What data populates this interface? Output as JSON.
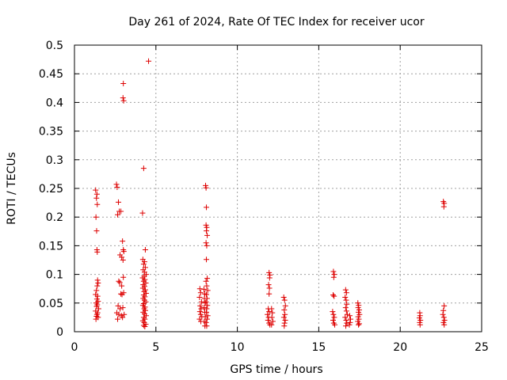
{
  "chart_data": {
    "type": "scatter",
    "title": "Day 261 of 2024, Rate Of TEC Index for receiver ucor",
    "xlabel": "GPS time / hours",
    "ylabel": "ROTI / TECUs",
    "xlim": [
      0,
      25
    ],
    "ylim": [
      0,
      0.5
    ],
    "xticks": [
      0,
      5,
      10,
      15,
      20,
      25
    ],
    "yticks": [
      0,
      0.05,
      0.1,
      0.15,
      0.2,
      0.25,
      0.3,
      0.35,
      0.4,
      0.45,
      0.5
    ],
    "xtick_labels": [
      "0",
      "5",
      "10",
      "15",
      "20",
      "25"
    ],
    "ytick_labels": [
      "0",
      "0.05",
      "0.1",
      "0.15",
      "0.2",
      "0.25",
      "0.3",
      "0.35",
      "0.4",
      "0.45",
      "0.5"
    ],
    "grid": true,
    "marker": "plus",
    "colors": {
      "series": "#dd0000",
      "grid": "#a0a0a0",
      "axis": "#000000"
    },
    "series": [
      {
        "points": [
          [
            1.3,
            0.247
          ],
          [
            1.38,
            0.24
          ],
          [
            1.35,
            0.233
          ],
          [
            1.4,
            0.222
          ],
          [
            1.32,
            0.2
          ],
          [
            1.36,
            0.176
          ],
          [
            1.38,
            0.143
          ],
          [
            1.4,
            0.139
          ],
          [
            1.42,
            0.09
          ],
          [
            1.45,
            0.085
          ],
          [
            1.4,
            0.08
          ],
          [
            1.35,
            0.072
          ],
          [
            1.3,
            0.065
          ],
          [
            1.42,
            0.062
          ],
          [
            1.38,
            0.057
          ],
          [
            1.45,
            0.053
          ],
          [
            1.33,
            0.05
          ],
          [
            1.4,
            0.047
          ],
          [
            1.36,
            0.044
          ],
          [
            1.48,
            0.04
          ],
          [
            1.3,
            0.036
          ],
          [
            1.42,
            0.033
          ],
          [
            1.38,
            0.03
          ],
          [
            1.35,
            0.027
          ],
          [
            1.45,
            0.025
          ],
          [
            1.32,
            0.022
          ],
          [
            2.58,
            0.257
          ],
          [
            2.62,
            0.252
          ],
          [
            2.7,
            0.226
          ],
          [
            2.75,
            0.21
          ],
          [
            2.65,
            0.204
          ],
          [
            2.85,
            0.21
          ],
          [
            2.8,
            0.134
          ],
          [
            2.9,
            0.13
          ],
          [
            2.72,
            0.088
          ],
          [
            2.78,
            0.086
          ],
          [
            2.9,
            0.08
          ],
          [
            2.85,
            0.066
          ],
          [
            2.92,
            0.065
          ],
          [
            2.68,
            0.045
          ],
          [
            2.8,
            0.04
          ],
          [
            2.6,
            0.033
          ],
          [
            2.72,
            0.03
          ],
          [
            2.88,
            0.028
          ],
          [
            2.95,
            0.025
          ],
          [
            2.65,
            0.022
          ],
          [
            3.0,
            0.433
          ],
          [
            2.98,
            0.408
          ],
          [
            3.02,
            0.403
          ],
          [
            2.95,
            0.158
          ],
          [
            3.0,
            0.143
          ],
          [
            3.03,
            0.14
          ],
          [
            2.98,
            0.125
          ],
          [
            3.0,
            0.095
          ],
          [
            3.02,
            0.068
          ],
          [
            2.97,
            0.042
          ],
          [
            3.05,
            0.03
          ],
          [
            4.55,
            0.472
          ],
          [
            4.25,
            0.285
          ],
          [
            4.18,
            0.207
          ],
          [
            4.35,
            0.143
          ],
          [
            4.2,
            0.126
          ],
          [
            4.3,
            0.122
          ],
          [
            4.25,
            0.118
          ],
          [
            4.35,
            0.112
          ],
          [
            4.22,
            0.108
          ],
          [
            4.3,
            0.104
          ],
          [
            4.4,
            0.1
          ],
          [
            4.28,
            0.097
          ],
          [
            4.18,
            0.094
          ],
          [
            4.32,
            0.091
          ],
          [
            4.25,
            0.088
          ],
          [
            4.38,
            0.085
          ],
          [
            4.22,
            0.082
          ],
          [
            4.3,
            0.079
          ],
          [
            4.2,
            0.076
          ],
          [
            4.35,
            0.073
          ],
          [
            4.28,
            0.07
          ],
          [
            4.4,
            0.067
          ],
          [
            4.25,
            0.064
          ],
          [
            4.32,
            0.061
          ],
          [
            4.22,
            0.058
          ],
          [
            4.3,
            0.055
          ],
          [
            4.38,
            0.052
          ],
          [
            4.25,
            0.049
          ],
          [
            4.2,
            0.046
          ],
          [
            4.33,
            0.043
          ],
          [
            4.28,
            0.04
          ],
          [
            4.35,
            0.037
          ],
          [
            4.22,
            0.034
          ],
          [
            4.3,
            0.031
          ],
          [
            4.4,
            0.028
          ],
          [
            4.25,
            0.025
          ],
          [
            4.32,
            0.022
          ],
          [
            4.2,
            0.019
          ],
          [
            4.28,
            0.016
          ],
          [
            4.38,
            0.013
          ],
          [
            4.25,
            0.011
          ],
          [
            4.32,
            0.009
          ],
          [
            7.7,
            0.075
          ],
          [
            7.75,
            0.068
          ],
          [
            7.68,
            0.06
          ],
          [
            7.8,
            0.052
          ],
          [
            7.72,
            0.045
          ],
          [
            7.78,
            0.04
          ],
          [
            7.7,
            0.035
          ],
          [
            7.75,
            0.03
          ],
          [
            7.82,
            0.026
          ],
          [
            7.68,
            0.022
          ],
          [
            7.76,
            0.018
          ],
          [
            7.95,
            0.074
          ],
          [
            8.0,
            0.066
          ],
          [
            7.98,
            0.058
          ],
          [
            8.02,
            0.05
          ],
          [
            7.96,
            0.042
          ],
          [
            8.0,
            0.034
          ],
          [
            8.03,
            0.026
          ],
          [
            7.97,
            0.018
          ],
          [
            8.01,
            0.01
          ],
          [
            8.05,
            0.255
          ],
          [
            8.08,
            0.251
          ],
          [
            8.1,
            0.217
          ],
          [
            8.08,
            0.186
          ],
          [
            8.12,
            0.182
          ],
          [
            8.1,
            0.176
          ],
          [
            8.15,
            0.168
          ],
          [
            8.08,
            0.155
          ],
          [
            8.12,
            0.15
          ],
          [
            8.1,
            0.126
          ],
          [
            8.15,
            0.093
          ],
          [
            8.08,
            0.088
          ],
          [
            8.12,
            0.08
          ],
          [
            8.18,
            0.072
          ],
          [
            8.1,
            0.065
          ],
          [
            8.14,
            0.058
          ],
          [
            8.08,
            0.052
          ],
          [
            8.16,
            0.046
          ],
          [
            8.12,
            0.04
          ],
          [
            8.1,
            0.034
          ],
          [
            8.18,
            0.028
          ],
          [
            8.14,
            0.022
          ],
          [
            8.08,
            0.016
          ],
          [
            8.12,
            0.01
          ],
          [
            11.95,
            0.103
          ],
          [
            12.0,
            0.099
          ],
          [
            11.98,
            0.094
          ],
          [
            11.92,
            0.082
          ],
          [
            11.97,
            0.076
          ],
          [
            11.95,
            0.066
          ],
          [
            11.9,
            0.04
          ],
          [
            11.95,
            0.035
          ],
          [
            11.85,
            0.03
          ],
          [
            11.92,
            0.025
          ],
          [
            11.88,
            0.02
          ],
          [
            11.95,
            0.015
          ],
          [
            12.0,
            0.012
          ],
          [
            12.1,
            0.04
          ],
          [
            12.15,
            0.033
          ],
          [
            12.12,
            0.025
          ],
          [
            12.18,
            0.018
          ],
          [
            12.1,
            0.012
          ],
          [
            12.85,
            0.06
          ],
          [
            12.9,
            0.055
          ],
          [
            12.95,
            0.045
          ],
          [
            12.88,
            0.038
          ],
          [
            12.92,
            0.03
          ],
          [
            12.86,
            0.025
          ],
          [
            12.94,
            0.02
          ],
          [
            12.9,
            0.015
          ],
          [
            12.88,
            0.01
          ],
          [
            15.9,
            0.105
          ],
          [
            15.95,
            0.1
          ],
          [
            15.92,
            0.095
          ],
          [
            15.88,
            0.064
          ],
          [
            15.94,
            0.062
          ],
          [
            15.85,
            0.035
          ],
          [
            15.9,
            0.03
          ],
          [
            15.95,
            0.025
          ],
          [
            15.88,
            0.02
          ],
          [
            15.92,
            0.015
          ],
          [
            15.98,
            0.012
          ],
          [
            16.65,
            0.073
          ],
          [
            16.7,
            0.068
          ],
          [
            16.62,
            0.06
          ],
          [
            16.68,
            0.055
          ],
          [
            16.72,
            0.048
          ],
          [
            16.65,
            0.042
          ],
          [
            16.7,
            0.036
          ],
          [
            16.75,
            0.03
          ],
          [
            16.62,
            0.025
          ],
          [
            16.68,
            0.02
          ],
          [
            16.72,
            0.015
          ],
          [
            16.66,
            0.01
          ],
          [
            16.9,
            0.028
          ],
          [
            16.95,
            0.022
          ],
          [
            16.92,
            0.016
          ],
          [
            16.88,
            0.012
          ],
          [
            17.4,
            0.05
          ],
          [
            17.45,
            0.046
          ],
          [
            17.42,
            0.042
          ],
          [
            17.48,
            0.038
          ],
          [
            17.44,
            0.034
          ],
          [
            17.5,
            0.03
          ],
          [
            17.42,
            0.026
          ],
          [
            17.46,
            0.022
          ],
          [
            17.4,
            0.018
          ],
          [
            17.48,
            0.014
          ],
          [
            17.44,
            0.012
          ],
          [
            21.2,
            0.033
          ],
          [
            21.22,
            0.028
          ],
          [
            21.18,
            0.024
          ],
          [
            21.24,
            0.02
          ],
          [
            21.2,
            0.016
          ],
          [
            21.22,
            0.012
          ],
          [
            22.65,
            0.227
          ],
          [
            22.7,
            0.224
          ],
          [
            22.68,
            0.218
          ],
          [
            22.7,
            0.045
          ],
          [
            22.65,
            0.037
          ],
          [
            22.62,
            0.03
          ],
          [
            22.68,
            0.025
          ],
          [
            22.72,
            0.02
          ],
          [
            22.66,
            0.016
          ],
          [
            22.7,
            0.012
          ]
        ]
      }
    ]
  }
}
